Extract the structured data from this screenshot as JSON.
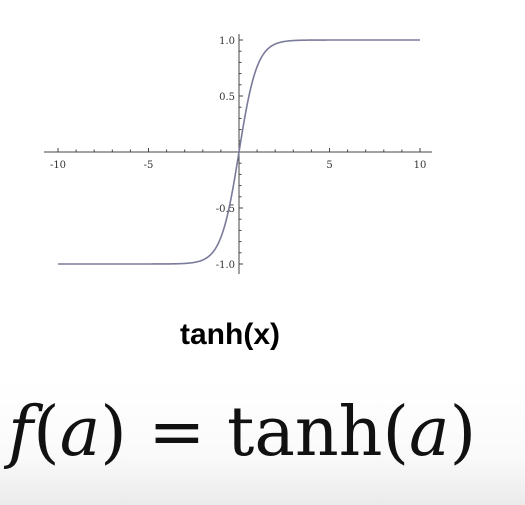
{
  "chart_data": {
    "type": "line",
    "title": "tanh(x)",
    "function": "tanh",
    "xlim": [
      -10,
      10
    ],
    "ylim": [
      -1.1,
      1.1
    ],
    "x_ticks": [
      {
        "value": -10,
        "label": "-10"
      },
      {
        "value": -5,
        "label": "-5"
      },
      {
        "value": 5,
        "label": "5"
      },
      {
        "value": 10,
        "label": "10"
      }
    ],
    "y_ticks": [
      {
        "value": 1.0,
        "label": "1.0"
      },
      {
        "value": 0.5,
        "label": "0.5"
      },
      {
        "value": -0.5,
        "label": "-0.5"
      },
      {
        "value": -1.0,
        "label": "-1.0"
      }
    ],
    "series": [
      {
        "color": "#7a7a9a",
        "x": [
          -10,
          -8,
          -6,
          -4,
          -3,
          -2.5,
          -2,
          -1.5,
          -1,
          -0.5,
          0,
          0.5,
          1,
          1.5,
          2,
          2.5,
          3,
          4,
          6,
          8,
          10
        ],
        "y": [
          -1.0,
          -1.0,
          -1.0,
          -0.999,
          -0.995,
          -0.987,
          -0.964,
          -0.905,
          -0.762,
          -0.462,
          0.0,
          0.462,
          0.762,
          0.905,
          0.964,
          0.987,
          0.995,
          0.999,
          1.0,
          1.0,
          1.0
        ]
      }
    ],
    "grid": false,
    "legend": "none"
  },
  "caption": "tanh(x)",
  "formula": {
    "lhs_fn": "f",
    "lhs_arg": "a",
    "equals": "=",
    "rhs_fn": "tanh",
    "rhs_arg": "a"
  }
}
